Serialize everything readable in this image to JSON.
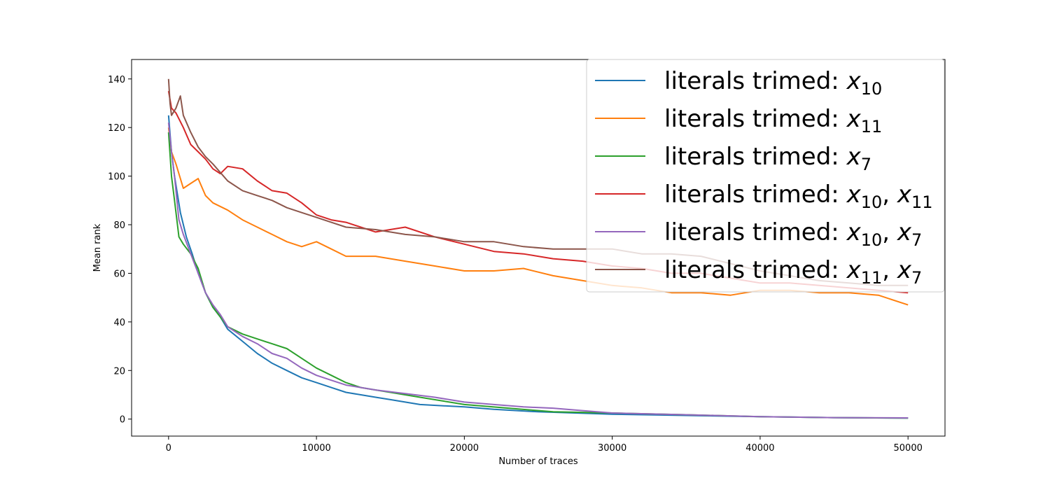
{
  "chart_data": {
    "type": "line",
    "title": "",
    "xlabel": "Number of traces",
    "ylabel": "Mean rank",
    "xlim": [
      -2500,
      52500
    ],
    "ylim": [
      -7,
      148
    ],
    "xticks": [
      0,
      10000,
      20000,
      30000,
      40000,
      50000
    ],
    "yticks": [
      0,
      20,
      40,
      60,
      80,
      100,
      120,
      140
    ],
    "grid": false,
    "legend_position": "top-right",
    "legend_prefix": "literals trimed: ",
    "series": [
      {
        "name": "literals trimed: x_10",
        "legend_math": [
          [
            "x",
            "10"
          ]
        ],
        "color": "#1f77b4",
        "x": [
          0,
          200,
          400,
          800,
          1200,
          1600,
          2000,
          2500,
          3000,
          3500,
          4000,
          5000,
          6000,
          7000,
          8000,
          9000,
          10000,
          11000,
          12000,
          13000,
          14000,
          15000,
          17000,
          20000,
          22000,
          25000,
          30000,
          35000,
          40000,
          45000,
          50000
        ],
        "y": [
          125,
          110,
          100,
          85,
          75,
          68,
          60,
          52,
          46,
          42,
          37,
          32,
          27,
          23,
          20,
          17,
          15,
          13,
          11,
          10,
          9,
          8,
          6,
          5,
          4,
          3,
          2,
          1.5,
          1,
          0.6,
          0.4
        ]
      },
      {
        "name": "literals trimed: x_11",
        "legend_math": [
          [
            "x",
            "11"
          ]
        ],
        "color": "#ff7f0e",
        "x": [
          0,
          200,
          500,
          1000,
          1500,
          2000,
          2500,
          3000,
          4000,
          5000,
          6000,
          7000,
          8000,
          9000,
          10000,
          11000,
          12000,
          14000,
          16000,
          18000,
          20000,
          22000,
          24000,
          26000,
          28000,
          30000,
          32000,
          34000,
          36000,
          38000,
          40000,
          42000,
          44000,
          46000,
          48000,
          50000
        ],
        "y": [
          120,
          110,
          105,
          95,
          97,
          99,
          92,
          89,
          86,
          82,
          79,
          76,
          73,
          71,
          73,
          70,
          67,
          67,
          65,
          63,
          61,
          61,
          62,
          59,
          57,
          55,
          54,
          52,
          52,
          51,
          53,
          53,
          52,
          52,
          51,
          47
        ]
      },
      {
        "name": "literals trimed: x_7",
        "legend_math": [
          [
            "x",
            "7"
          ]
        ],
        "color": "#2ca02c",
        "x": [
          0,
          200,
          400,
          700,
          1000,
          1500,
          2000,
          2500,
          3000,
          3500,
          4000,
          5000,
          6000,
          7000,
          8000,
          9000,
          10000,
          11000,
          12000,
          13000,
          14000,
          15000,
          17000,
          20000,
          23000,
          26000,
          30000,
          35000,
          40000,
          45000,
          50000
        ],
        "y": [
          118,
          100,
          90,
          75,
          72,
          68,
          62,
          52,
          46,
          42,
          38,
          35,
          33,
          31,
          29,
          25,
          21,
          18,
          15,
          13,
          12,
          11,
          9,
          6,
          4.5,
          3,
          2.5,
          1.8,
          1,
          0.6,
          0.4
        ]
      },
      {
        "name": "literals trimed: x_10, x_11",
        "legend_math": [
          [
            "x",
            "10"
          ],
          [
            "x",
            "11"
          ]
        ],
        "color": "#d62728",
        "x": [
          0,
          200,
          500,
          1000,
          1500,
          2000,
          2500,
          3000,
          3500,
          4000,
          5000,
          6000,
          7000,
          8000,
          9000,
          10000,
          11000,
          12000,
          14000,
          16000,
          18000,
          20000,
          22000,
          24000,
          26000,
          28000,
          30000,
          32000,
          34000,
          36000,
          38000,
          40000,
          42000,
          44000,
          46000,
          48000,
          50000
        ],
        "y": [
          135,
          128,
          126,
          120,
          113,
          110,
          107,
          103,
          101,
          104,
          103,
          98,
          94,
          93,
          89,
          84,
          82,
          81,
          77,
          79,
          75,
          72,
          69,
          68,
          66,
          65,
          63,
          62,
          60,
          60,
          58,
          56,
          56,
          55,
          54,
          53,
          52
        ]
      },
      {
        "name": "literals trimed: x_10, x_7",
        "legend_math": [
          [
            "x",
            "10"
          ],
          [
            "x",
            "7"
          ]
        ],
        "color": "#9467bd",
        "x": [
          0,
          200,
          400,
          700,
          1000,
          1500,
          2000,
          2500,
          3000,
          3500,
          4000,
          5000,
          6000,
          7000,
          8000,
          9000,
          10000,
          11000,
          12000,
          13000,
          14000,
          16000,
          18000,
          20000,
          22000,
          24000,
          26000,
          28000,
          30000,
          35000,
          40000,
          45000,
          50000
        ],
        "y": [
          122,
          110,
          100,
          82,
          76,
          68,
          60,
          52,
          47,
          43,
          38,
          34,
          31,
          27,
          25,
          21,
          18,
          16,
          14,
          13,
          12,
          10.5,
          9,
          7,
          6,
          5,
          4.5,
          3.5,
          2.5,
          1.8,
          1,
          0.6,
          0.5
        ]
      },
      {
        "name": "literals trimed: x_11, x_7",
        "legend_math": [
          [
            "x",
            "11"
          ],
          [
            "x",
            "7"
          ]
        ],
        "color": "#8c564b",
        "x": [
          0,
          100,
          200,
          500,
          800,
          1000,
          1500,
          2000,
          2500,
          3000,
          4000,
          5000,
          6000,
          7000,
          8000,
          9000,
          10000,
          11000,
          12000,
          14000,
          16000,
          18000,
          20000,
          22000,
          24000,
          26000,
          28000,
          30000,
          32000,
          34000,
          36000,
          38000,
          40000,
          42000,
          44000,
          46000,
          48000,
          50000
        ],
        "y": [
          140,
          130,
          125,
          128,
          133,
          125,
          118,
          112,
          108,
          105,
          98,
          94,
          92,
          90,
          87,
          85,
          83,
          81,
          79,
          78,
          76,
          75,
          73,
          73,
          71,
          70,
          70,
          70,
          68,
          68,
          67,
          64,
          61,
          59,
          57,
          56,
          55,
          55
        ]
      }
    ]
  }
}
